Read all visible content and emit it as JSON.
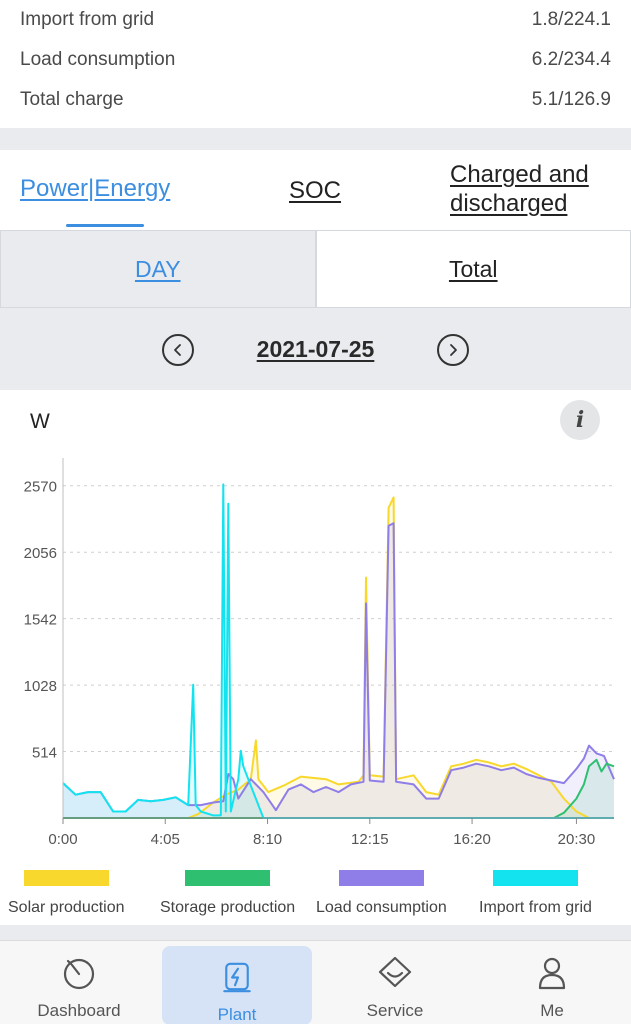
{
  "stats": [
    {
      "label": "Import from grid",
      "value": "1.8/224.1"
    },
    {
      "label": "Load consumption",
      "value": "6.2/234.4"
    },
    {
      "label": "Total charge",
      "value": "5.1/126.9"
    }
  ],
  "tabs": {
    "power_energy": "Power|Energy",
    "soc": "SOC",
    "charged_discharged": "Charged and discharged"
  },
  "period": {
    "day": "DAY",
    "total": "Total"
  },
  "date": "2021-07-25",
  "chart": {
    "unit": "W",
    "info": "i"
  },
  "colors": {
    "accent": "#3b8ee0",
    "solar": "#f8d82c",
    "storage": "#2fbf71",
    "load": "#8f7ee8",
    "grid": "#13e3ef"
  },
  "chart_data": {
    "type": "line",
    "ylabel": "W",
    "ylim": [
      0,
      2800
    ],
    "y_ticks": [
      "2570",
      "2056",
      "1542",
      "1028",
      "514"
    ],
    "x_ticks": [
      "0:00",
      "4:05",
      "8:10",
      "12:15",
      "16:20",
      "20:30"
    ],
    "x_ticks_hours": [
      0,
      4.083,
      8.167,
      12.25,
      16.333,
      20.5
    ],
    "x_range_hours": [
      0,
      22
    ],
    "grid": "horizontal-dashed",
    "legend_position": "bottom",
    "series": [
      {
        "name": "Solar production",
        "color": "#f8d82c",
        "points": [
          [
            0,
            0
          ],
          [
            5,
            0
          ],
          [
            5.4,
            30
          ],
          [
            6,
            120
          ],
          [
            6.5,
            180
          ],
          [
            7,
            220
          ],
          [
            7.5,
            300
          ],
          [
            7.7,
            600
          ],
          [
            7.8,
            300
          ],
          [
            8.2,
            200
          ],
          [
            8.8,
            250
          ],
          [
            9.5,
            320
          ],
          [
            10.5,
            300
          ],
          [
            11,
            260
          ],
          [
            11.8,
            280
          ],
          [
            12,
            330
          ],
          [
            12.1,
            1860
          ],
          [
            12.25,
            330
          ],
          [
            12.8,
            320
          ],
          [
            13,
            2400
          ],
          [
            13.2,
            2480
          ],
          [
            13.3,
            300
          ],
          [
            14,
            330
          ],
          [
            14.5,
            200
          ],
          [
            15,
            180
          ],
          [
            15.5,
            400
          ],
          [
            16,
            420
          ],
          [
            16.5,
            450
          ],
          [
            17,
            430
          ],
          [
            17.5,
            400
          ],
          [
            18,
            420
          ],
          [
            18.5,
            380
          ],
          [
            19,
            330
          ],
          [
            19.5,
            280
          ],
          [
            20,
            150
          ],
          [
            20.5,
            50
          ],
          [
            21,
            0
          ],
          [
            22,
            0
          ]
        ]
      },
      {
        "name": "Storage production",
        "color": "#2fbf71",
        "points": [
          [
            0,
            0
          ],
          [
            19.6,
            0
          ],
          [
            20,
            40
          ],
          [
            20.5,
            150
          ],
          [
            20.8,
            260
          ],
          [
            21,
            400
          ],
          [
            21.3,
            450
          ],
          [
            21.5,
            360
          ],
          [
            21.7,
            420
          ],
          [
            22,
            400
          ]
        ]
      },
      {
        "name": "Load consumption",
        "color": "#8f7ee8",
        "points": [
          [
            0,
            270
          ],
          [
            0.5,
            180
          ],
          [
            1,
            200
          ],
          [
            1.5,
            200
          ],
          [
            2,
            50
          ],
          [
            2.5,
            50
          ],
          [
            3,
            140
          ],
          [
            3.5,
            130
          ],
          [
            4,
            140
          ],
          [
            4.5,
            160
          ],
          [
            5,
            100
          ],
          [
            5.5,
            100
          ],
          [
            6,
            120
          ],
          [
            6.4,
            130
          ],
          [
            6.6,
            340
          ],
          [
            6.8,
            300
          ],
          [
            7,
            150
          ],
          [
            7.5,
            300
          ],
          [
            8,
            200
          ],
          [
            8.5,
            60
          ],
          [
            9,
            220
          ],
          [
            9.5,
            260
          ],
          [
            10,
            200
          ],
          [
            10.5,
            240
          ],
          [
            11,
            200
          ],
          [
            11.5,
            260
          ],
          [
            12,
            280
          ],
          [
            12.1,
            1660
          ],
          [
            12.25,
            290
          ],
          [
            12.8,
            280
          ],
          [
            13,
            2260
          ],
          [
            13.2,
            2280
          ],
          [
            13.3,
            280
          ],
          [
            14,
            260
          ],
          [
            14.5,
            150
          ],
          [
            15,
            150
          ],
          [
            15.5,
            370
          ],
          [
            16,
            390
          ],
          [
            16.5,
            420
          ],
          [
            17,
            400
          ],
          [
            17.5,
            370
          ],
          [
            18,
            390
          ],
          [
            18.5,
            340
          ],
          [
            19,
            310
          ],
          [
            19.5,
            290
          ],
          [
            20,
            270
          ],
          [
            20.5,
            380
          ],
          [
            20.8,
            460
          ],
          [
            21,
            560
          ],
          [
            21.3,
            500
          ],
          [
            21.6,
            480
          ],
          [
            22,
            300
          ]
        ]
      },
      {
        "name": "Import from grid",
        "color": "#13e3ef",
        "points": [
          [
            0,
            270
          ],
          [
            0.5,
            180
          ],
          [
            1,
            200
          ],
          [
            1.5,
            200
          ],
          [
            2,
            50
          ],
          [
            2.5,
            50
          ],
          [
            3,
            140
          ],
          [
            3.5,
            130
          ],
          [
            4,
            140
          ],
          [
            4.5,
            160
          ],
          [
            5,
            100
          ],
          [
            5.2,
            1030
          ],
          [
            5.3,
            100
          ],
          [
            5.5,
            50
          ],
          [
            6,
            20
          ],
          [
            6.3,
            20
          ],
          [
            6.4,
            2580
          ],
          [
            6.5,
            50
          ],
          [
            6.6,
            2430
          ],
          [
            6.7,
            50
          ],
          [
            7,
            300
          ],
          [
            7.1,
            520
          ],
          [
            7.2,
            400
          ],
          [
            7.5,
            250
          ],
          [
            8,
            0
          ],
          [
            22,
            0
          ]
        ]
      }
    ]
  },
  "legend": [
    {
      "label": "Solar production",
      "color": "#f8d82c"
    },
    {
      "label": "Storage production",
      "color": "#2fbf71"
    },
    {
      "label": "Load consumption",
      "color": "#8f7ee8"
    },
    {
      "label": "Import from grid",
      "color": "#13e3ef"
    }
  ],
  "tabbar": [
    {
      "label": "Dashboard",
      "icon": "dashboard-icon"
    },
    {
      "label": "Plant",
      "icon": "plant-icon",
      "active": true
    },
    {
      "label": "Service",
      "icon": "service-icon"
    },
    {
      "label": "Me",
      "icon": "me-icon"
    }
  ]
}
